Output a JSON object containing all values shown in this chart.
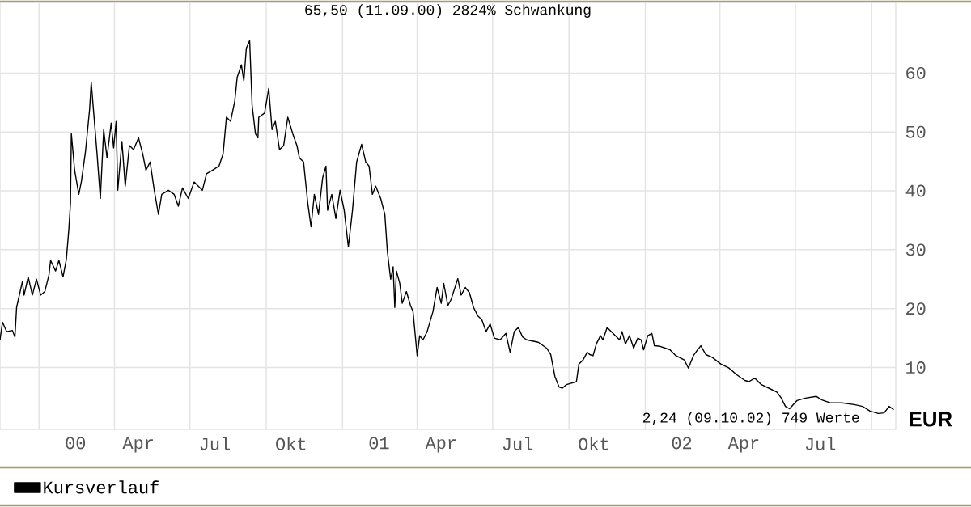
{
  "chart_data": {
    "type": "line",
    "annotations": [
      "65,50 (11.09.00) 2824% Schwankung",
      "2,24 (09.10.02) 749 Werte"
    ],
    "ylabel": "EUR",
    "xlim": [
      "1999-11-15",
      "2002-10-30"
    ],
    "ylim": [
      -0.5,
      72
    ],
    "xticks": [
      {
        "value": "2000-01-01",
        "label": null
      },
      {
        "value": "2000-04-01",
        "label": null
      },
      {
        "value": "2000-07-01",
        "label": null
      },
      {
        "value": "2000-10-01",
        "label": null
      },
      {
        "value": "2001-01-01",
        "label": null
      },
      {
        "value": "2001-04-01",
        "label": null
      },
      {
        "value": "2001-07-01",
        "label": null
      },
      {
        "value": "2001-10-01",
        "label": null
      },
      {
        "value": "2002-01-01",
        "label": null
      },
      {
        "value": "2002-04-01",
        "label": null
      },
      {
        "value": "2002-07-01",
        "label": null
      },
      {
        "value": "2002-10-01",
        "label": null
      },
      {
        "value": "2000-02-14",
        "label": "00"
      },
      {
        "value": "2000-04-30",
        "label": "Apr"
      },
      {
        "value": "2000-07-31",
        "label": "Jul"
      },
      {
        "value": "2000-10-31",
        "label": "Okt"
      },
      {
        "value": "2001-02-14",
        "label": "01"
      },
      {
        "value": "2001-04-30",
        "label": "Apr"
      },
      {
        "value": "2001-07-31",
        "label": "Jul"
      },
      {
        "value": "2001-10-31",
        "label": "Okt"
      },
      {
        "value": "2002-02-14",
        "label": "02"
      },
      {
        "value": "2002-04-30",
        "label": "Apr"
      },
      {
        "value": "2002-07-31",
        "label": "Jul"
      }
    ],
    "yticks": [
      10,
      20,
      30,
      40,
      50,
      60
    ],
    "grid": true,
    "legend": "bottom",
    "marker": "none",
    "line_style": "solid",
    "series": [
      {
        "name": "Kursverlauf",
        "color": "#000000",
        "x": [
          "1999-11-15",
          "1999-11-18",
          "1999-11-23",
          "1999-11-30",
          "1999-12-03",
          "1999-12-05",
          "1999-12-12",
          "1999-12-14",
          "1999-12-19",
          "1999-12-24",
          "1999-12-29",
          "2000-01-03",
          "2000-01-08",
          "2000-01-13",
          "2000-01-15",
          "2000-01-21",
          "2000-01-25",
          "2000-01-30",
          "2000-02-03",
          "2000-02-06",
          "2000-02-08",
          "2000-02-09",
          "2000-02-13",
          "2000-02-18",
          "2000-02-21",
          "2000-02-26",
          "2000-03-02",
          "2000-03-04",
          "2000-03-07",
          "2000-03-11",
          "2000-03-15",
          "2000-03-19",
          "2000-03-23",
          "2000-03-28",
          "2000-03-31",
          "2000-04-03",
          "2000-04-05",
          "2000-04-10",
          "2000-04-14",
          "2000-04-19",
          "2000-04-24",
          "2000-04-30",
          "2000-05-05",
          "2000-05-09",
          "2000-05-14",
          "2000-05-19",
          "2000-05-24",
          "2000-05-28",
          "2000-06-05",
          "2000-06-12",
          "2000-06-17",
          "2000-06-22",
          "2000-06-29",
          "2000-07-06",
          "2000-07-16",
          "2000-07-21",
          "2000-07-28",
          "2000-08-05",
          "2000-08-10",
          "2000-08-14",
          "2000-08-19",
          "2000-08-24",
          "2000-08-27",
          "2000-09-01",
          "2000-09-04",
          "2000-09-07",
          "2000-09-11",
          "2000-09-14",
          "2000-09-18",
          "2000-09-21",
          "2000-09-22",
          "2000-09-29",
          "2000-10-04",
          "2000-10-08",
          "2000-10-12",
          "2000-10-17",
          "2000-10-22",
          "2000-10-27",
          "2000-10-30",
          "2000-11-02",
          "2000-11-07",
          "2000-11-10",
          "2000-11-15",
          "2000-11-18",
          "2000-11-20",
          "2000-11-24",
          "2000-11-28",
          "2000-12-03",
          "2000-12-08",
          "2000-12-12",
          "2000-12-14",
          "2000-12-19",
          "2000-12-24",
          "2000-12-29",
          "2001-01-03",
          "2001-01-08",
          "2001-01-13",
          "2001-01-18",
          "2001-01-24",
          "2001-01-29",
          "2001-02-02",
          "2001-02-06",
          "2001-02-10",
          "2001-02-16",
          "2001-02-21",
          "2001-02-24",
          "2001-02-28",
          "2001-03-03",
          "2001-03-05",
          "2001-03-07",
          "2001-03-11",
          "2001-03-14",
          "2001-03-19",
          "2001-03-24",
          "2001-03-27",
          "2001-04-01",
          "2001-04-04",
          "2001-04-08",
          "2001-04-13",
          "2001-04-20",
          "2001-04-25",
          "2001-04-30",
          "2001-05-03",
          "2001-05-08",
          "2001-05-12",
          "2001-05-20",
          "2001-05-24",
          "2001-05-29",
          "2001-06-03",
          "2001-06-08",
          "2001-06-13",
          "2001-06-18",
          "2001-06-23",
          "2001-06-28",
          "2001-07-03",
          "2001-07-10",
          "2001-07-17",
          "2001-07-22",
          "2001-07-27",
          "2001-08-01",
          "2001-08-06",
          "2001-08-11",
          "2001-08-25",
          "2001-09-04",
          "2001-09-09",
          "2001-09-14",
          "2001-09-19",
          "2001-09-23",
          "2001-09-28",
          "2001-10-10",
          "2001-10-13",
          "2001-10-18",
          "2001-10-23",
          "2001-10-26",
          "2001-10-30",
          "2001-11-03",
          "2001-11-08",
          "2001-11-11",
          "2001-11-16",
          "2001-11-21",
          "2001-11-26",
          "2001-12-01",
          "2001-12-04",
          "2001-12-08",
          "2001-12-13",
          "2001-12-18",
          "2001-12-23",
          "2001-12-27",
          "2001-12-30",
          "2002-01-04",
          "2002-01-09",
          "2002-01-12",
          "2002-01-19",
          "2002-01-25",
          "2002-01-31",
          "2002-02-07",
          "2002-02-17",
          "2002-02-22",
          "2002-02-28",
          "2002-03-05",
          "2002-03-09",
          "2002-03-15",
          "2002-03-23",
          "2002-04-02",
          "2002-04-12",
          "2002-04-21",
          "2002-05-01",
          "2002-05-06",
          "2002-05-13",
          "2002-05-21",
          "2002-05-30",
          "2002-06-09",
          "2002-06-14",
          "2002-06-19",
          "2002-06-24",
          "2002-07-03",
          "2002-07-13",
          "2002-07-26",
          "2002-08-02",
          "2002-08-12",
          "2002-08-26",
          "2002-09-10",
          "2002-09-20",
          "2002-09-29",
          "2002-10-09",
          "2002-10-16",
          "2002-10-22",
          "2002-10-27"
        ],
        "values": [
          14.7,
          17.7,
          16.1,
          16.3,
          15.2,
          20.2,
          24.6,
          22.3,
          25.4,
          22.3,
          25.0,
          22.3,
          22.9,
          25.7,
          28.2,
          26.4,
          28.2,
          25.4,
          28.4,
          33.5,
          38.0,
          49.7,
          43.5,
          39.4,
          41.5,
          46.6,
          53.8,
          58.4,
          53.2,
          46.3,
          38.7,
          50.4,
          45.6,
          51.5,
          47.3,
          51.8,
          40.1,
          48.4,
          40.8,
          47.7,
          47.0,
          49.0,
          46.3,
          43.5,
          44.9,
          40.1,
          36.0,
          39.4,
          40.1,
          39.4,
          37.4,
          40.5,
          38.7,
          41.5,
          40.1,
          42.9,
          43.5,
          44.2,
          46.3,
          52.5,
          51.8,
          55.2,
          59.3,
          61.4,
          58.7,
          64.2,
          65.5,
          54.5,
          49.7,
          49.0,
          52.5,
          53.2,
          57.4,
          50.4,
          51.8,
          47.0,
          47.7,
          52.5,
          51.1,
          49.7,
          47.7,
          45.6,
          44.9,
          40.8,
          38.0,
          33.9,
          39.4,
          36.0,
          42.2,
          44.2,
          36.7,
          39.4,
          35.3,
          40.1,
          36.7,
          30.5,
          36.7,
          44.9,
          47.9,
          44.9,
          44.2,
          39.4,
          40.8,
          38.7,
          36.0,
          29.8,
          25.0,
          27.1,
          20.2,
          26.4,
          24.3,
          20.9,
          22.9,
          20.5,
          19.5,
          12.0,
          15.4,
          14.7,
          16.1,
          19.5,
          23.6,
          20.9,
          24.3,
          20.5,
          21.6,
          25.1,
          22.3,
          23.6,
          22.7,
          20.2,
          18.8,
          18.1,
          16.1,
          17.4,
          15.0,
          14.7,
          15.8,
          12.6,
          16.1,
          16.8,
          15.2,
          14.7,
          14.3,
          13.3,
          12.2,
          8.5,
          6.7,
          6.5,
          7.1,
          7.6,
          10.6,
          11.3,
          12.6,
          12.2,
          12.0,
          14.0,
          15.4,
          14.7,
          16.8,
          16.1,
          15.4,
          14.7,
          16.1,
          14.0,
          15.4,
          13.3,
          15.0,
          14.7,
          13.0,
          15.4,
          15.8,
          13.7,
          13.6,
          13.3,
          13.0,
          12.0,
          11.3,
          9.9,
          12.0,
          13.0,
          13.7,
          12.2,
          11.7,
          10.6,
          9.9,
          8.8,
          7.8,
          7.6,
          8.2,
          7.1,
          6.5,
          5.8,
          4.8,
          3.4,
          3.0,
          4.4,
          4.8,
          5.1,
          4.5,
          4.0,
          4.0,
          3.7,
          3.4,
          2.6,
          2.2,
          2.3,
          3.4,
          2.9
        ]
      }
    ]
  }
}
